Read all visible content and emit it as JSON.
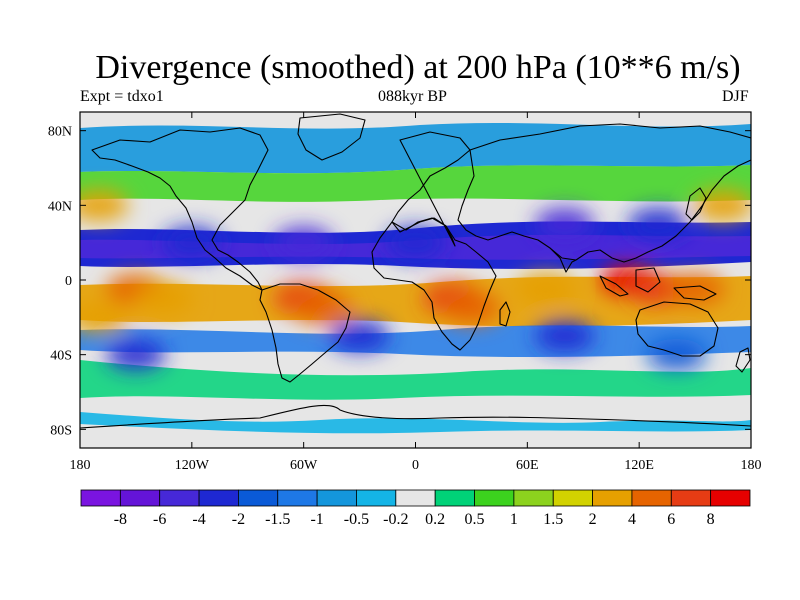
{
  "title": "Divergence (smoothed) at 200 hPa (10**6 m/s)",
  "left_label": "Expt = tdxo1",
  "center_label": "088kyr BP",
  "right_label": "DJF",
  "x_ticks": [
    "180",
    "120W",
    "60W",
    "0",
    "60E",
    "120E",
    "180"
  ],
  "y_ticks": [
    "80N",
    "40N",
    "0",
    "40S",
    "80S"
  ],
  "colorbar": {
    "colors": [
      "#7a14e0",
      "#6414d8",
      "#4628d8",
      "#1e28d2",
      "#0a5ad7",
      "#1e78e6",
      "#1496dc",
      "#14b4e6",
      "#e6e6e6",
      "#00d278",
      "#3cd21e",
      "#8cd21e",
      "#d2d200",
      "#e6a000",
      "#e66400",
      "#e63c14",
      "#e60000"
    ],
    "labels": [
      "-8",
      "-6",
      "-4",
      "-2",
      "-1.5",
      "-1",
      "-0.5",
      "-0.2",
      "0.2",
      "0.5",
      "1",
      "1.5",
      "2",
      "4",
      "6",
      "8"
    ]
  },
  "map_fields": [
    {
      "lon": -150,
      "lat": -5,
      "level": 14
    },
    {
      "lon": -135,
      "lat": -10,
      "level": 13
    },
    {
      "lon": -60,
      "lat": -10,
      "level": 15
    },
    {
      "lon": -50,
      "lat": -15,
      "level": 14
    },
    {
      "lon": 20,
      "lat": -10,
      "level": 15
    },
    {
      "lon": 30,
      "lat": -15,
      "level": 14
    },
    {
      "lon": 115,
      "lat": 0,
      "level": 16
    },
    {
      "lon": 130,
      "lat": -5,
      "level": 15
    },
    {
      "lon": 150,
      "lat": -5,
      "level": 14
    },
    {
      "lon": 70,
      "lat": -5,
      "level": 13
    },
    {
      "lon": -120,
      "lat": 20,
      "level": 3
    },
    {
      "lon": -60,
      "lat": 20,
      "level": 2
    },
    {
      "lon": 0,
      "lat": 20,
      "level": 3
    },
    {
      "lon": 80,
      "lat": 30,
      "level": 2
    },
    {
      "lon": 130,
      "lat": 30,
      "level": 3
    },
    {
      "lon": -150,
      "lat": -40,
      "level": 3
    },
    {
      "lon": -30,
      "lat": -30,
      "level": 3
    },
    {
      "lon": 80,
      "lat": -30,
      "level": 3
    },
    {
      "lon": 140,
      "lat": -40,
      "level": 4
    },
    {
      "lon": -170,
      "lat": 40,
      "level": 13
    },
    {
      "lon": 165,
      "lat": 40,
      "level": 13
    },
    {
      "lon": -170,
      "lat": -20,
      "level": 13
    }
  ]
}
